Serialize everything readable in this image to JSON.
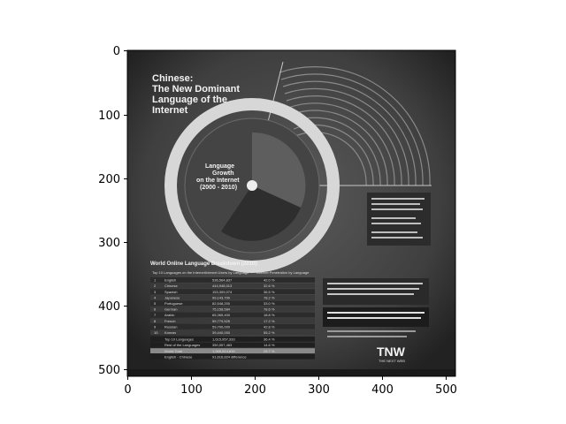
{
  "axes": {
    "x_ticks": [
      "0",
      "100",
      "200",
      "300",
      "400",
      "500"
    ],
    "y_ticks": [
      "0",
      "100",
      "200",
      "300",
      "400",
      "500"
    ]
  },
  "poster": {
    "title_line1": "Chinese:",
    "title_line2": "The New Dominant",
    "title_line3": "Language of the",
    "title_line4": "Internet",
    "growth_line1": "Language",
    "growth_line2": "Growth",
    "growth_line3": "on the Internet",
    "growth_line4": "(2000 - 2010)",
    "table_title": "World Online Language Breakdown (2010):",
    "table_header": {
      "col1": "Top 10 Languages on the Internet",
      "col2": "Internet Users by Language",
      "col3": "Internet Penetration by Language"
    },
    "table_rows": [
      {
        "rank": "1",
        "lang": "English",
        "users": "536,564,837",
        "pen": "42.0 %"
      },
      {
        "rank": "2",
        "lang": "Chinese",
        "users": "444,948,013",
        "pen": "32.6 %"
      },
      {
        "rank": "3",
        "lang": "Spanish",
        "users": "153,309,074",
        "pen": "36.5 %"
      },
      {
        "rank": "4",
        "lang": "Japanese",
        "users": "99,143,700",
        "pen": "78.2 %"
      },
      {
        "rank": "5",
        "lang": "Portuguese",
        "users": "82,548,200",
        "pen": "33.0 %"
      },
      {
        "rank": "6",
        "lang": "German",
        "users": "75,158,584",
        "pen": "78.6 %"
      },
      {
        "rank": "7",
        "lang": "Arabic",
        "users": "65,365,400",
        "pen": "18.8 %"
      },
      {
        "rank": "8",
        "lang": "French",
        "users": "59,779,525",
        "pen": "17.2 %"
      },
      {
        "rank": "9",
        "lang": "Russian",
        "users": "59,700,000",
        "pen": "42.8 %"
      },
      {
        "rank": "10",
        "lang": "Korean",
        "users": "39,440,000",
        "pen": "55.2 %"
      }
    ],
    "row_top10": {
      "label": "Top 10 Languages",
      "users": "1,615,957,333",
      "pen": "36.4 %"
    },
    "row_rest": {
      "label": "Rest of the Languages",
      "users": "350,557,483",
      "pen": "14.6 %"
    },
    "row_world": {
      "label": "World Total",
      "users": "1,966,514,816",
      "pen": "28.7 %"
    },
    "row_diff": {
      "label": "English - Chinese",
      "users": "91,616,824 difference"
    },
    "brand": "TNW",
    "brand_sub": "THE NEXT WEB"
  }
}
